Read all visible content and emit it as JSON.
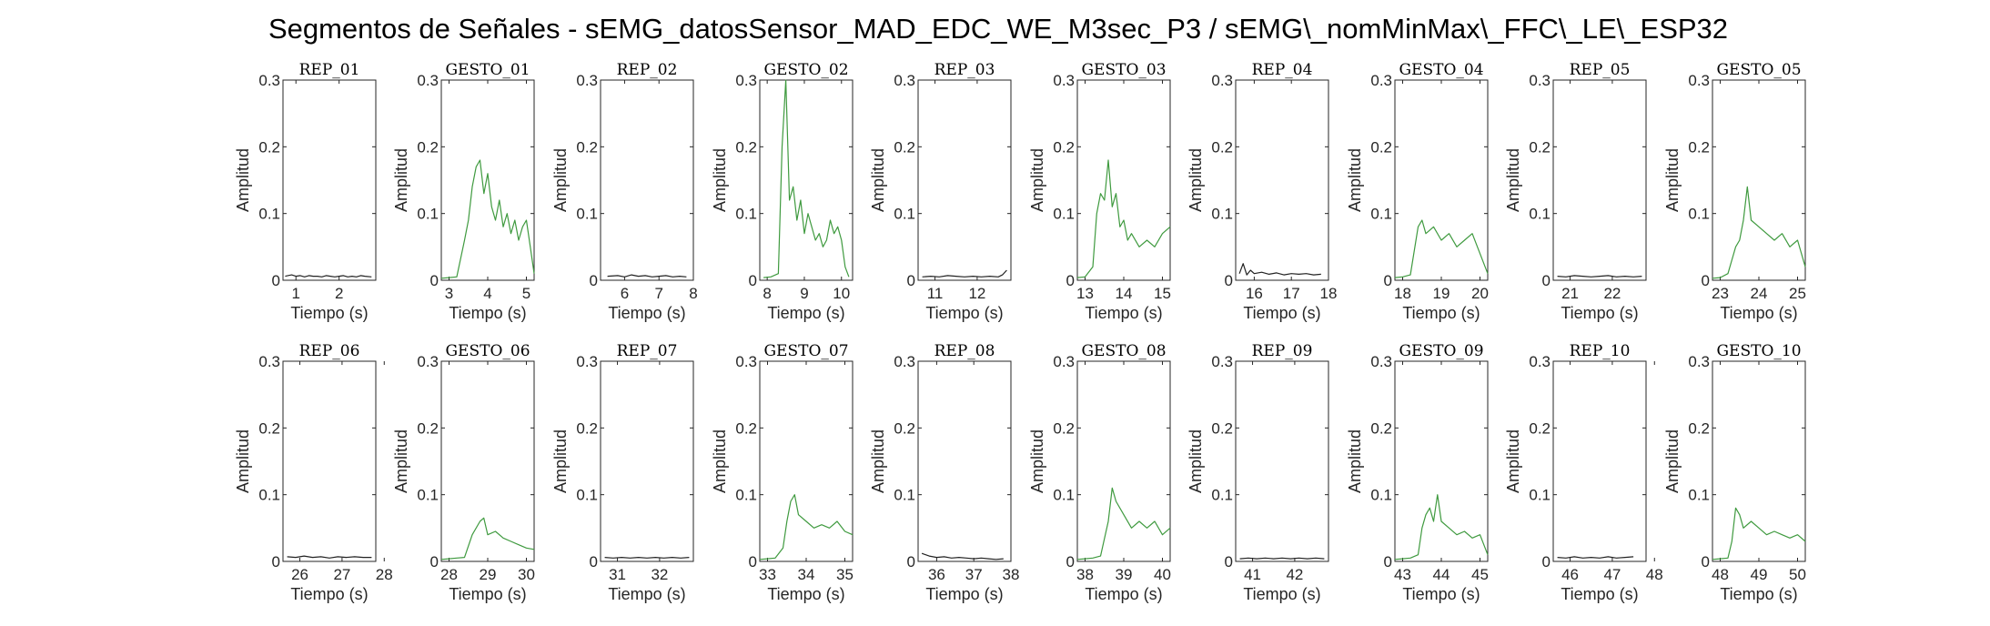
{
  "figure": {
    "title": "Segmentos de Señales - sEMG_datosSensor_MAD_EDC_WE_M3sec_P3 / sEMG\\_nomMinMax\\_FFC\\_LE\\_ESP32",
    "colors": {
      "rep": "#222222",
      "gesto": "#3f9a3f",
      "axis": "#262626"
    }
  },
  "chart_data": [
    {
      "type": "line",
      "title": "REP_01",
      "xlabel": "Tiempo (s)",
      "ylabel": "Amplitud",
      "xlim": [
        0.7,
        2.85
      ],
      "ylim": [
        0,
        0.3
      ],
      "xticks": [
        1,
        2
      ],
      "yticks": [
        0,
        0.1,
        0.2,
        0.3
      ],
      "kind": "rep",
      "x": [
        0.75,
        0.9,
        1.0,
        1.1,
        1.2,
        1.3,
        1.4,
        1.5,
        1.6,
        1.7,
        1.8,
        1.9,
        2.0,
        2.1,
        2.2,
        2.3,
        2.4,
        2.5,
        2.6,
        2.75
      ],
      "y": [
        0.006,
        0.008,
        0.006,
        0.007,
        0.005,
        0.007,
        0.006,
        0.006,
        0.005,
        0.007,
        0.006,
        0.005,
        0.006,
        0.007,
        0.005,
        0.006,
        0.005,
        0.007,
        0.006,
        0.005
      ]
    },
    {
      "type": "line",
      "title": "GESTO_01",
      "xlabel": "Tiempo (s)",
      "ylabel": "Amplitud",
      "xlim": [
        2.8,
        5.2
      ],
      "ylim": [
        0,
        0.3
      ],
      "xticks": [
        3,
        4,
        5
      ],
      "yticks": [
        0,
        0.1,
        0.2,
        0.3
      ],
      "kind": "gesto",
      "x": [
        2.8,
        3.0,
        3.2,
        3.4,
        3.5,
        3.6,
        3.7,
        3.8,
        3.9,
        4.0,
        4.1,
        4.2,
        4.3,
        4.4,
        4.5,
        4.6,
        4.7,
        4.8,
        4.9,
        5.0,
        5.1,
        5.2
      ],
      "y": [
        0.003,
        0.004,
        0.005,
        0.06,
        0.09,
        0.14,
        0.17,
        0.18,
        0.13,
        0.16,
        0.11,
        0.09,
        0.12,
        0.08,
        0.1,
        0.07,
        0.09,
        0.06,
        0.08,
        0.09,
        0.05,
        0.01
      ]
    },
    {
      "type": "line",
      "title": "REP_02",
      "xlabel": "Tiempo (s)",
      "ylabel": "Amplitud",
      "xlim": [
        5.3,
        8.0
      ],
      "ylim": [
        0,
        0.3
      ],
      "xticks": [
        6,
        7,
        8
      ],
      "yticks": [
        0,
        0.1,
        0.2,
        0.3
      ],
      "kind": "rep",
      "x": [
        5.5,
        5.8,
        6.0,
        6.2,
        6.4,
        6.6,
        6.8,
        7.0,
        7.2,
        7.4,
        7.6,
        7.8
      ],
      "y": [
        0.006,
        0.007,
        0.005,
        0.008,
        0.006,
        0.007,
        0.005,
        0.006,
        0.007,
        0.005,
        0.006,
        0.005
      ]
    },
    {
      "type": "line",
      "title": "GESTO_02",
      "xlabel": "Tiempo (s)",
      "ylabel": "Amplitud",
      "xlim": [
        7.8,
        10.3
      ],
      "ylim": [
        0,
        0.3
      ],
      "xticks": [
        8,
        9,
        10
      ],
      "yticks": [
        0,
        0.1,
        0.2,
        0.3
      ],
      "kind": "gesto",
      "x": [
        7.9,
        8.1,
        8.3,
        8.4,
        8.5,
        8.6,
        8.7,
        8.8,
        8.9,
        9.0,
        9.1,
        9.2,
        9.3,
        9.4,
        9.5,
        9.6,
        9.7,
        9.8,
        9.9,
        10.0,
        10.1,
        10.2
      ],
      "y": [
        0.004,
        0.005,
        0.01,
        0.2,
        0.3,
        0.12,
        0.14,
        0.09,
        0.12,
        0.07,
        0.1,
        0.08,
        0.06,
        0.07,
        0.05,
        0.06,
        0.09,
        0.07,
        0.08,
        0.06,
        0.02,
        0.005
      ]
    },
    {
      "type": "line",
      "title": "REP_03",
      "xlabel": "Tiempo (s)",
      "ylabel": "Amplitud",
      "xlim": [
        10.6,
        12.8
      ],
      "ylim": [
        0,
        0.3
      ],
      "xticks": [
        11,
        12
      ],
      "yticks": [
        0,
        0.1,
        0.2,
        0.3
      ],
      "kind": "rep",
      "x": [
        10.7,
        10.9,
        11.1,
        11.3,
        11.5,
        11.7,
        11.9,
        12.1,
        12.3,
        12.5,
        12.6,
        12.7
      ],
      "y": [
        0.005,
        0.006,
        0.005,
        0.007,
        0.006,
        0.005,
        0.006,
        0.005,
        0.006,
        0.005,
        0.008,
        0.015
      ]
    },
    {
      "type": "line",
      "title": "GESTO_03",
      "xlabel": "Tiempo (s)",
      "ylabel": "Amplitud",
      "xlim": [
        12.8,
        15.2
      ],
      "ylim": [
        0,
        0.3
      ],
      "xticks": [
        13,
        14,
        15
      ],
      "yticks": [
        0,
        0.1,
        0.2,
        0.3
      ],
      "kind": "gesto",
      "x": [
        12.8,
        13.0,
        13.2,
        13.3,
        13.4,
        13.5,
        13.6,
        13.7,
        13.8,
        13.9,
        14.0,
        14.1,
        14.2,
        14.4,
        14.6,
        14.8,
        15.0,
        15.2
      ],
      "y": [
        0.004,
        0.005,
        0.02,
        0.1,
        0.13,
        0.12,
        0.18,
        0.11,
        0.13,
        0.08,
        0.09,
        0.06,
        0.07,
        0.05,
        0.06,
        0.05,
        0.07,
        0.08
      ]
    },
    {
      "type": "line",
      "title": "REP_04",
      "xlabel": "Tiempo (s)",
      "ylabel": "Amplitud",
      "xlim": [
        15.5,
        18.0
      ],
      "ylim": [
        0,
        0.3
      ],
      "xticks": [
        16,
        17,
        18
      ],
      "yticks": [
        0,
        0.1,
        0.2,
        0.3
      ],
      "kind": "rep",
      "x": [
        15.6,
        15.7,
        15.8,
        15.9,
        16.0,
        16.2,
        16.4,
        16.6,
        16.8,
        17.0,
        17.2,
        17.4,
        17.6,
        17.8
      ],
      "y": [
        0.01,
        0.025,
        0.008,
        0.015,
        0.01,
        0.012,
        0.009,
        0.011,
        0.008,
        0.01,
        0.009,
        0.01,
        0.008,
        0.009
      ]
    },
    {
      "type": "line",
      "title": "GESTO_04",
      "xlabel": "Tiempo (s)",
      "ylabel": "Amplitud",
      "xlim": [
        17.8,
        20.2
      ],
      "ylim": [
        0,
        0.3
      ],
      "xticks": [
        18,
        19,
        20
      ],
      "yticks": [
        0,
        0.1,
        0.2,
        0.3
      ],
      "kind": "gesto",
      "x": [
        17.8,
        18.0,
        18.2,
        18.4,
        18.5,
        18.6,
        18.8,
        19.0,
        19.2,
        19.4,
        19.6,
        19.8,
        20.0,
        20.2
      ],
      "y": [
        0.004,
        0.005,
        0.008,
        0.08,
        0.09,
        0.07,
        0.08,
        0.06,
        0.07,
        0.05,
        0.06,
        0.07,
        0.04,
        0.01
      ]
    },
    {
      "type": "line",
      "title": "REP_05",
      "xlabel": "Tiempo (s)",
      "ylabel": "Amplitud",
      "xlim": [
        20.6,
        22.8
      ],
      "ylim": [
        0,
        0.3
      ],
      "xticks": [
        21,
        22
      ],
      "yticks": [
        0,
        0.1,
        0.2,
        0.3
      ],
      "kind": "rep",
      "x": [
        20.7,
        20.9,
        21.1,
        21.3,
        21.5,
        21.7,
        21.9,
        22.1,
        22.3,
        22.5,
        22.7
      ],
      "y": [
        0.006,
        0.005,
        0.007,
        0.006,
        0.005,
        0.006,
        0.007,
        0.005,
        0.006,
        0.005,
        0.006
      ]
    },
    {
      "type": "line",
      "title": "GESTO_05",
      "xlabel": "Tiempo (s)",
      "ylabel": "Amplitud",
      "xlim": [
        22.8,
        25.2
      ],
      "ylim": [
        0,
        0.3
      ],
      "xticks": [
        23,
        24,
        25
      ],
      "yticks": [
        0,
        0.1,
        0.2,
        0.3
      ],
      "kind": "gesto",
      "x": [
        22.8,
        23.0,
        23.2,
        23.4,
        23.5,
        23.6,
        23.7,
        23.8,
        24.0,
        24.2,
        24.4,
        24.6,
        24.8,
        25.0,
        25.2
      ],
      "y": [
        0.003,
        0.004,
        0.01,
        0.05,
        0.06,
        0.09,
        0.14,
        0.09,
        0.08,
        0.07,
        0.06,
        0.07,
        0.05,
        0.06,
        0.02
      ]
    },
    {
      "type": "line",
      "title": "REP_06",
      "xlabel": "Tiempo (s)",
      "ylabel": "Amplitud",
      "xlim": [
        25.6,
        27.8
      ],
      "ylim": [
        0,
        0.3
      ],
      "xticks": [
        26,
        27,
        28
      ],
      "yticks": [
        0,
        0.1,
        0.2,
        0.3
      ],
      "kind": "rep",
      "x": [
        25.7,
        25.9,
        26.1,
        26.3,
        26.5,
        26.7,
        26.9,
        27.1,
        27.3,
        27.5,
        27.7
      ],
      "y": [
        0.007,
        0.006,
        0.008,
        0.006,
        0.007,
        0.005,
        0.007,
        0.006,
        0.007,
        0.006,
        0.006
      ]
    },
    {
      "type": "line",
      "title": "GESTO_06",
      "xlabel": "Tiempo (s)",
      "ylabel": "Amplitud",
      "xlim": [
        27.8,
        30.2
      ],
      "ylim": [
        0,
        0.3
      ],
      "xticks": [
        28,
        29,
        30
      ],
      "yticks": [
        0,
        0.1,
        0.2,
        0.3
      ],
      "kind": "gesto",
      "x": [
        27.8,
        28.0,
        28.2,
        28.4,
        28.6,
        28.8,
        28.9,
        29.0,
        29.2,
        29.4,
        29.6,
        29.8,
        30.0,
        30.2
      ],
      "y": [
        0.003,
        0.004,
        0.005,
        0.006,
        0.04,
        0.06,
        0.065,
        0.04,
        0.045,
        0.035,
        0.03,
        0.025,
        0.02,
        0.018
      ]
    },
    {
      "type": "line",
      "title": "REP_07",
      "xlabel": "Tiempo (s)",
      "ylabel": "Amplitud",
      "xlim": [
        30.6,
        32.8
      ],
      "ylim": [
        0,
        0.3
      ],
      "xticks": [
        31,
        32
      ],
      "yticks": [
        0,
        0.1,
        0.2,
        0.3
      ],
      "kind": "rep",
      "x": [
        30.7,
        30.9,
        31.1,
        31.3,
        31.5,
        31.7,
        31.9,
        32.1,
        32.3,
        32.5,
        32.7
      ],
      "y": [
        0.006,
        0.005,
        0.006,
        0.005,
        0.006,
        0.005,
        0.006,
        0.005,
        0.006,
        0.005,
        0.006
      ]
    },
    {
      "type": "line",
      "title": "GESTO_07",
      "xlabel": "Tiempo (s)",
      "ylabel": "Amplitud",
      "xlim": [
        32.8,
        35.2
      ],
      "ylim": [
        0,
        0.3
      ],
      "xticks": [
        33,
        34,
        35
      ],
      "yticks": [
        0,
        0.1,
        0.2,
        0.3
      ],
      "kind": "gesto",
      "x": [
        32.8,
        33.0,
        33.2,
        33.4,
        33.5,
        33.6,
        33.7,
        33.8,
        34.0,
        34.2,
        34.4,
        34.6,
        34.8,
        35.0,
        35.2
      ],
      "y": [
        0.003,
        0.004,
        0.005,
        0.02,
        0.06,
        0.09,
        0.1,
        0.07,
        0.06,
        0.05,
        0.055,
        0.05,
        0.06,
        0.045,
        0.04
      ]
    },
    {
      "type": "line",
      "title": "REP_08",
      "xlabel": "Tiempo (s)",
      "ylabel": "Amplitud",
      "xlim": [
        35.5,
        38.0
      ],
      "ylim": [
        0,
        0.3
      ],
      "xticks": [
        36,
        37,
        38
      ],
      "yticks": [
        0,
        0.1,
        0.2,
        0.3
      ],
      "kind": "rep",
      "x": [
        35.6,
        35.8,
        36.0,
        36.2,
        36.4,
        36.6,
        36.8,
        37.0,
        37.2,
        37.4,
        37.6,
        37.8
      ],
      "y": [
        0.012,
        0.008,
        0.006,
        0.007,
        0.005,
        0.006,
        0.005,
        0.004,
        0.005,
        0.004,
        0.003,
        0.004
      ]
    },
    {
      "type": "line",
      "title": "GESTO_08",
      "xlabel": "Tiempo (s)",
      "ylabel": "Amplitud",
      "xlim": [
        37.8,
        40.2
      ],
      "ylim": [
        0,
        0.3
      ],
      "xticks": [
        38,
        39,
        40
      ],
      "yticks": [
        0,
        0.1,
        0.2,
        0.3
      ],
      "kind": "gesto",
      "x": [
        37.8,
        38.0,
        38.2,
        38.4,
        38.6,
        38.7,
        38.8,
        39.0,
        39.2,
        39.4,
        39.6,
        39.8,
        40.0,
        40.2
      ],
      "y": [
        0.003,
        0.004,
        0.005,
        0.008,
        0.06,
        0.11,
        0.09,
        0.07,
        0.05,
        0.06,
        0.05,
        0.06,
        0.04,
        0.05
      ]
    },
    {
      "type": "line",
      "title": "REP_09",
      "xlabel": "Tiempo (s)",
      "ylabel": "Amplitud",
      "xlim": [
        40.6,
        42.8
      ],
      "ylim": [
        0,
        0.3
      ],
      "xticks": [
        41,
        42
      ],
      "yticks": [
        0,
        0.1,
        0.2,
        0.3
      ],
      "kind": "rep",
      "x": [
        40.7,
        40.9,
        41.1,
        41.3,
        41.5,
        41.7,
        41.9,
        42.1,
        42.3,
        42.5,
        42.7
      ],
      "y": [
        0.004,
        0.005,
        0.004,
        0.005,
        0.004,
        0.005,
        0.004,
        0.005,
        0.004,
        0.005,
        0.004
      ]
    },
    {
      "type": "line",
      "title": "GESTO_09",
      "xlabel": "Tiempo (s)",
      "ylabel": "Amplitud",
      "xlim": [
        42.8,
        45.2
      ],
      "ylim": [
        0,
        0.3
      ],
      "xticks": [
        43,
        44,
        45
      ],
      "yticks": [
        0,
        0.1,
        0.2,
        0.3
      ],
      "kind": "gesto",
      "x": [
        42.8,
        43.0,
        43.2,
        43.4,
        43.5,
        43.6,
        43.7,
        43.8,
        43.9,
        44.0,
        44.2,
        44.4,
        44.6,
        44.8,
        45.0,
        45.2
      ],
      "y": [
        0.003,
        0.004,
        0.005,
        0.01,
        0.05,
        0.07,
        0.08,
        0.06,
        0.1,
        0.06,
        0.05,
        0.04,
        0.045,
        0.035,
        0.04,
        0.01
      ]
    },
    {
      "type": "line",
      "title": "REP_10",
      "xlabel": "Tiempo (s)",
      "ylabel": "Amplitud",
      "xlim": [
        45.6,
        47.8
      ],
      "ylim": [
        0,
        0.3
      ],
      "xticks": [
        46,
        47,
        48
      ],
      "yticks": [
        0,
        0.1,
        0.2,
        0.3
      ],
      "kind": "rep",
      "x": [
        45.7,
        45.9,
        46.1,
        46.3,
        46.5,
        46.7,
        46.9,
        47.1,
        47.3,
        47.5
      ],
      "y": [
        0.006,
        0.005,
        0.007,
        0.005,
        0.006,
        0.005,
        0.007,
        0.005,
        0.006,
        0.007
      ]
    },
    {
      "type": "line",
      "title": "GESTO_10",
      "xlabel": "Tiempo (s)",
      "ylabel": "Amplitud",
      "xlim": [
        47.8,
        50.2
      ],
      "ylim": [
        0,
        0.3
      ],
      "xticks": [
        48,
        49,
        50
      ],
      "yticks": [
        0,
        0.1,
        0.2,
        0.3
      ],
      "kind": "gesto",
      "x": [
        47.8,
        48.0,
        48.2,
        48.3,
        48.4,
        48.5,
        48.6,
        48.8,
        49.0,
        49.2,
        49.4,
        49.6,
        49.8,
        50.0,
        50.2
      ],
      "y": [
        0.003,
        0.004,
        0.005,
        0.03,
        0.08,
        0.07,
        0.05,
        0.06,
        0.05,
        0.04,
        0.045,
        0.04,
        0.035,
        0.04,
        0.03
      ]
    }
  ]
}
